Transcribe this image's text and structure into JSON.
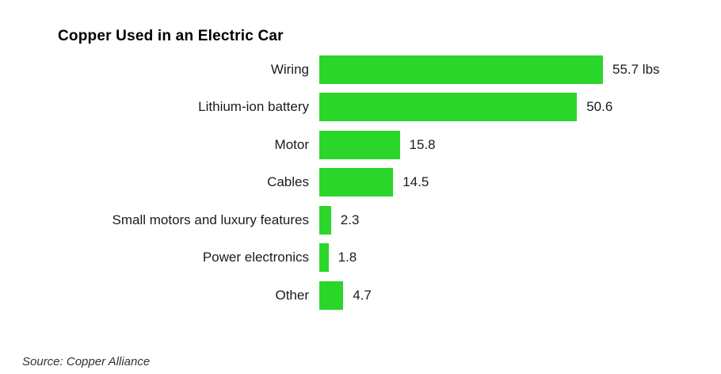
{
  "title": "Copper Used in an Electric Car",
  "source": {
    "text": "Source: Copper Alliance"
  },
  "colors": {
    "bar_green": "#2bd62b",
    "label_text": "#1b1b1b",
    "title_text": "#000000",
    "source_text": "#333333",
    "background": "#ffffff"
  },
  "chart_data": {
    "type": "bar",
    "orientation": "horizontal",
    "title": "Copper Used in an Electric Car",
    "categories": [
      "Wiring",
      "Lithium-ion battery",
      "Motor",
      "Cables",
      "Small motors and luxury features",
      "Power electronics",
      "Other"
    ],
    "values": [
      55.7,
      50.6,
      15.8,
      14.5,
      2.3,
      1.8,
      4.7
    ],
    "value_labels": [
      "55.7 lbs",
      "50.6",
      "15.8",
      "14.5",
      "2.3",
      "1.8",
      "4.7"
    ],
    "unit": "lbs",
    "xlim": [
      0,
      55.7
    ],
    "grid": false,
    "legend": "none",
    "axis_ticks": "none",
    "bar_color": "#2bd62b",
    "source": "Source: Copper Alliance"
  }
}
